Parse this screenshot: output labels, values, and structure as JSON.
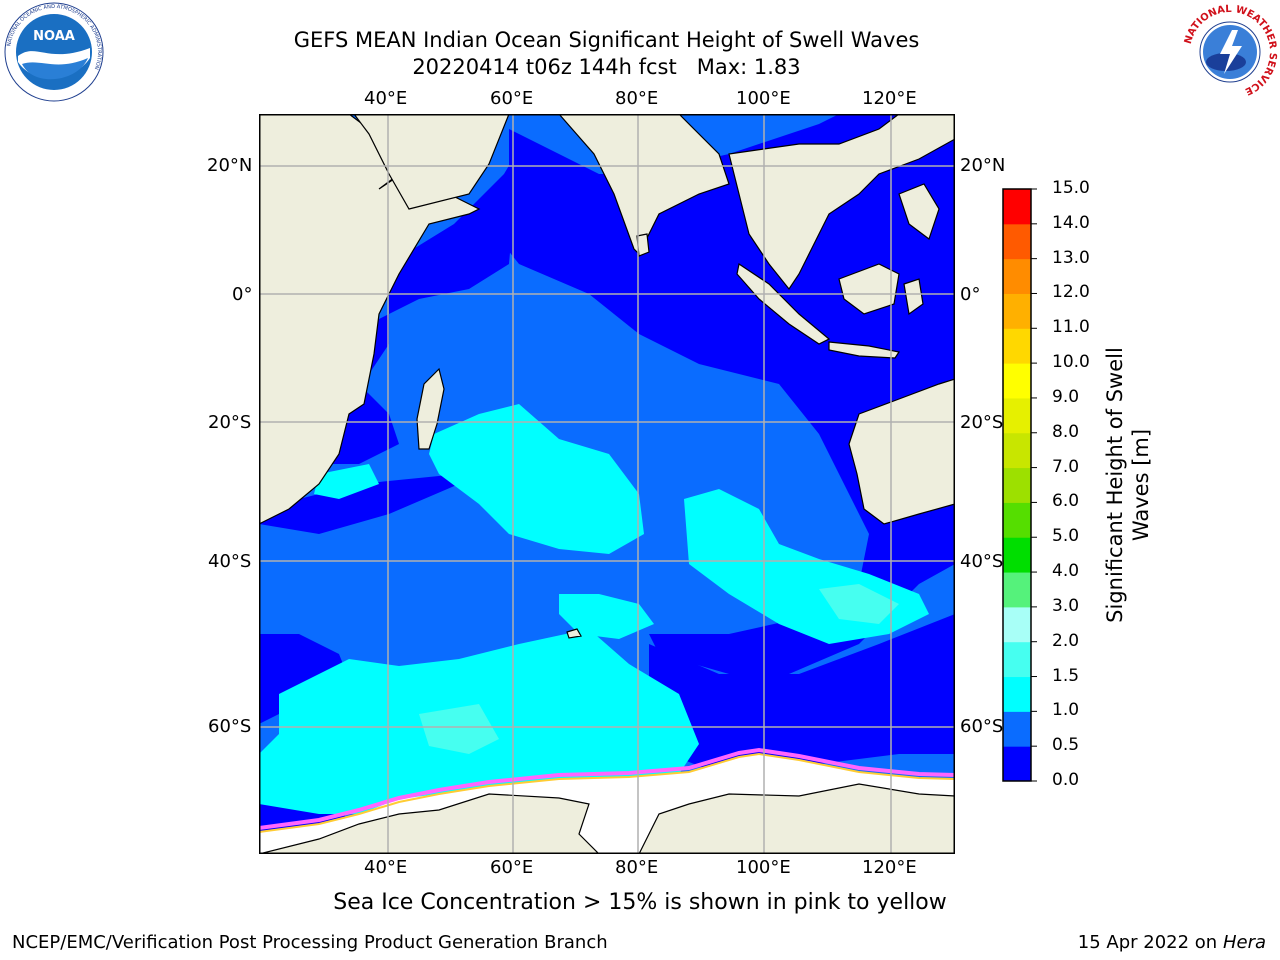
{
  "title": {
    "line1": "GEFS MEAN Indian Ocean Significant Height of Swell Waves",
    "line2": "20220414 t06z 144h fcst   Max: 1.83"
  },
  "map": {
    "lon_labels": [
      "40°E",
      "60°E",
      "80°E",
      "100°E",
      "120°E"
    ],
    "lat_labels": [
      "20°N",
      "0°",
      "20°S",
      "40°S",
      "60°S"
    ],
    "extent": {
      "lon": [
        20,
        130
      ],
      "lat": [
        -75,
        27
      ]
    },
    "colors": {
      "land": "#eeeedd",
      "ice_free_shelf": "#ffffff",
      "grid": "#b0b0b0"
    }
  },
  "colorbar": {
    "label": "Significant Height of Swell Waves [m]",
    "ticks": [
      "0.0",
      "0.5",
      "1.0",
      "1.5",
      "2.0",
      "3.0",
      "4.0",
      "5.0",
      "6.0",
      "7.0",
      "8.0",
      "9.0",
      "10.0",
      "11.0",
      "12.0",
      "13.0",
      "14.0",
      "15.0"
    ],
    "colors": [
      "#0000ff",
      "#0a6cff",
      "#00ffff",
      "#46fff0",
      "#a8fff7",
      "#55f27b",
      "#00de00",
      "#55de00",
      "#9de000",
      "#c8e600",
      "#e6f000",
      "#ffff00",
      "#ffd800",
      "#ffb000",
      "#ff8c00",
      "#ff5a00",
      "#ff0000"
    ]
  },
  "caption": "Sea Ice Concentration > 15% is shown in pink to yellow",
  "footer": {
    "left": "NCEP/EMC/Verification Post Processing Product Generation Branch",
    "date": "15 Apr 2022 on",
    "machine": "Hera"
  },
  "logos": {
    "noaa_text": "NOAA",
    "nws_ring_text": "NATIONAL WEATHER SERVICE",
    "noaa_ring_text": "NATIONAL OCEANIC AND ATMOSPHERIC ADMINISTRATION",
    "noaa_bottom_text": "U.S. DEPARTMENT OF COMMERCE"
  }
}
